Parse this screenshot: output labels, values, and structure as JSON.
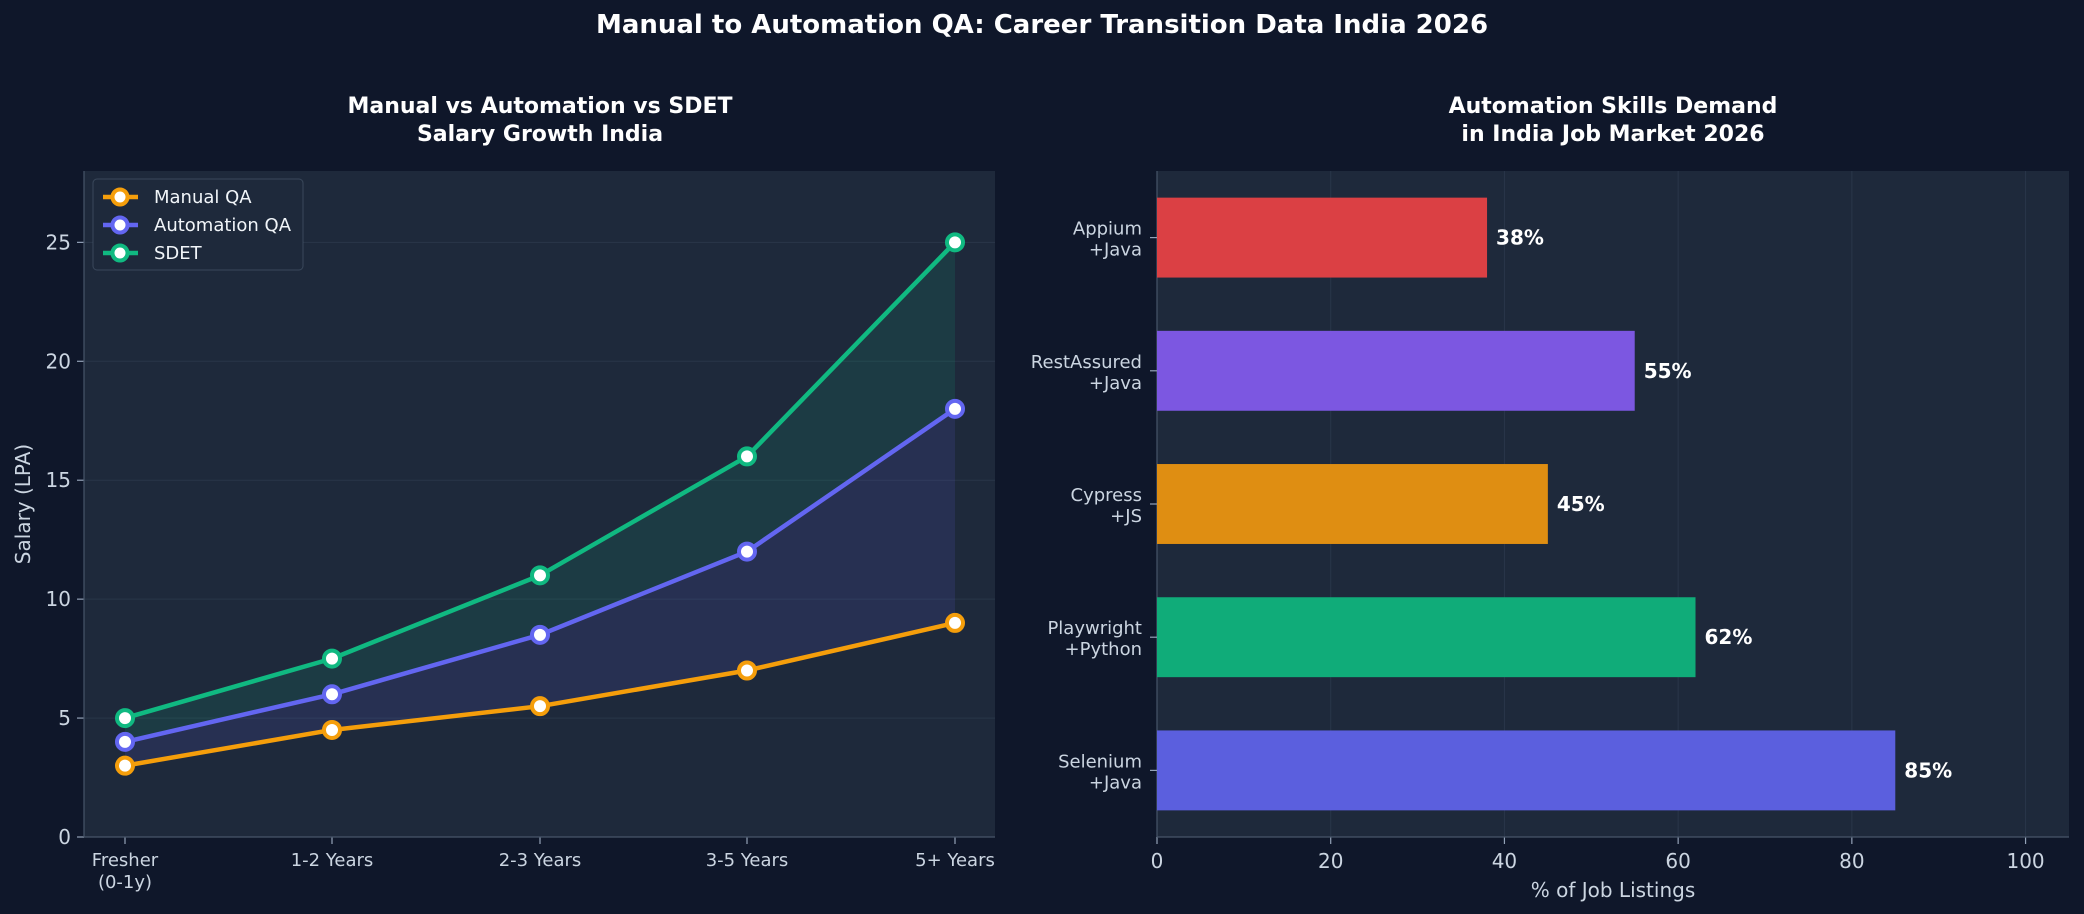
{
  "figure": {
    "title": "Manual to Automation QA: Career Transition Data India 2026",
    "background": "#0f172a",
    "panel_background": "#1e293b"
  },
  "chart_data": [
    {
      "type": "line",
      "title_lines": [
        "Manual vs Automation vs SDET",
        "Salary Growth India"
      ],
      "xlabel": "",
      "ylabel": "Salary (LPA)",
      "categories": [
        [
          "Fresher",
          "(0-1y)"
        ],
        [
          "1-2 Years"
        ],
        [
          "2-3 Years"
        ],
        [
          "3-5 Years"
        ],
        [
          "5+ Years"
        ]
      ],
      "ylim": [
        0,
        28
      ],
      "yticks": [
        0,
        5,
        10,
        15,
        20,
        25
      ],
      "grid": true,
      "legend": "top-left",
      "series": [
        {
          "name": "Manual QA",
          "values": [
            3,
            4.5,
            5.5,
            7,
            9
          ],
          "color": "#f59e0b",
          "fill_to": null
        },
        {
          "name": "Automation QA",
          "values": [
            4,
            6,
            8.5,
            12,
            18
          ],
          "color": "#6366f1",
          "fill_to": "Manual QA"
        },
        {
          "name": "SDET",
          "values": [
            5,
            7.5,
            11,
            16,
            25
          ],
          "color": "#10b981",
          "fill_to": "Automation QA"
        }
      ]
    },
    {
      "type": "bar",
      "orientation": "horizontal",
      "title_lines": [
        "Automation Skills Demand",
        "in India Job Market 2026"
      ],
      "xlabel": "% of Job Listings",
      "ylabel": "",
      "xlim": [
        0,
        105
      ],
      "xticks": [
        0,
        20,
        40,
        60,
        80,
        100
      ],
      "grid": true,
      "bars": [
        {
          "label": [
            "Selenium",
            "+Java"
          ],
          "value": 85,
          "value_label": "85%",
          "color": "#5b5fde"
        },
        {
          "label": [
            "Playwright",
            "+Python"
          ],
          "value": 62,
          "value_label": "62%",
          "color": "#10ac79"
        },
        {
          "label": [
            "Cypress",
            "+JS"
          ],
          "value": 45,
          "value_label": "45%",
          "color": "#df8e12"
        },
        {
          "label": [
            "RestAssured",
            "+Java"
          ],
          "value": 55,
          "value_label": "55%",
          "color": "#7c57e1"
        },
        {
          "label": [
            "Appium",
            "+Java"
          ],
          "value": 38,
          "value_label": "38%",
          "color": "#db4044"
        }
      ]
    }
  ]
}
